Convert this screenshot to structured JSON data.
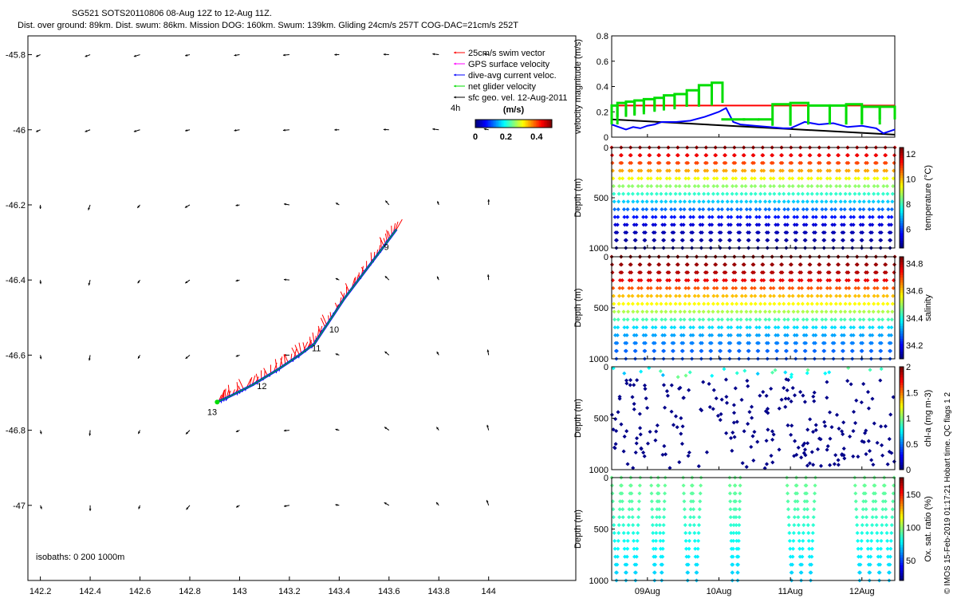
{
  "title_line1": "SG521 SOTS20110806 08-Aug 12Z to 12-Aug 11Z.",
  "title_line2": "Dist. over ground: 89km. Dist. swum: 86km. Mission DOG: 160km. Swum: 139km. Gliding 24cm/s 257T COG-DAC=21cm/s 252T",
  "side_label": "© IMOS 15-Feb-2019 01:17:21 Hobart time. QC flags 1  2",
  "chart_data": [
    {
      "type": "scatter",
      "name": "map",
      "xticks": [
        "142.2",
        "142.4",
        "142.6",
        "142.8",
        "143",
        "143.2",
        "143.4",
        "143.6",
        "143.8",
        "144"
      ],
      "yticks": [
        "-45.8",
        "-46",
        "-46.2",
        "-46.4",
        "-46.6",
        "-46.8",
        "-47"
      ],
      "xlim": [
        142.15,
        144.35
      ],
      "ylim": [
        -47.2,
        -45.75
      ],
      "legend": [
        {
          "label": "25cm/s swim vector",
          "color": "#ff0000"
        },
        {
          "label": "GPS surface velocity",
          "color": "#ff00ff"
        },
        {
          "label": "dive-avg current veloc.",
          "color": "#0000ff"
        },
        {
          "label": "net glider velocity",
          "color": "#00dd00"
        },
        {
          "label": "sfc geo. vel. 12-Aug-2011",
          "color": "#000000"
        }
      ],
      "ref_arrow_label": "4h",
      "colorbar": {
        "title": "(m/s)",
        "ticks": [
          "0",
          "0.2",
          "0.4"
        ],
        "range": [
          0,
          0.5
        ]
      },
      "isobaths_label": "isobaths: 0   200   1000m",
      "day_labels": [
        {
          "text": "9",
          "lon": 143.58,
          "lat": -46.32
        },
        {
          "text": "10",
          "lon": 143.36,
          "lat": -46.54
        },
        {
          "text": "11",
          "lon": 143.29,
          "lat": -46.59
        },
        {
          "text": "12",
          "lon": 143.07,
          "lat": -46.69
        },
        {
          "text": "13",
          "lon": 142.87,
          "lat": -46.76
        }
      ],
      "track": [
        [
          143.63,
          -46.265
        ],
        [
          143.58,
          -46.31
        ],
        [
          143.5,
          -46.38
        ],
        [
          143.42,
          -46.45
        ],
        [
          143.35,
          -46.52
        ],
        [
          143.3,
          -46.57
        ],
        [
          143.24,
          -46.6
        ],
        [
          143.15,
          -46.64
        ],
        [
          143.05,
          -46.68
        ],
        [
          142.96,
          -46.71
        ],
        [
          142.91,
          -46.725
        ]
      ]
    },
    {
      "type": "line",
      "name": "velocity",
      "ylabel": "velocity magnitude (m/s)",
      "yticks": [
        "0",
        "0.2",
        "0.4",
        "0.6",
        "0.8"
      ],
      "ylim": [
        0,
        0.8
      ],
      "xlim": [
        8.5,
        12.46
      ],
      "series": [
        {
          "color": "#ff0000",
          "x": [
            8.5,
            12.46
          ],
          "y": [
            0.25,
            0.25
          ]
        },
        {
          "color": "#000000",
          "x": [
            8.5,
            12.46
          ],
          "y": [
            0.14,
            0.02
          ]
        },
        {
          "color": "#0000ff",
          "x": [
            8.5,
            8.6,
            8.7,
            8.8,
            8.9,
            9.0,
            9.1,
            9.2,
            9.4,
            9.6,
            9.8,
            10.0,
            10.1,
            10.2,
            10.3,
            10.5,
            10.7,
            10.9,
            11.0,
            11.2,
            11.4,
            11.6,
            11.8,
            12.0,
            12.2,
            12.3,
            12.46
          ],
          "y": [
            0.1,
            0.08,
            0.06,
            0.08,
            0.07,
            0.09,
            0.1,
            0.12,
            0.12,
            0.13,
            0.16,
            0.2,
            0.23,
            0.12,
            0.1,
            0.09,
            0.08,
            0.07,
            0.07,
            0.12,
            0.1,
            0.11,
            0.08,
            0.09,
            0.07,
            0.03,
            0.06
          ]
        },
        {
          "color": "#00dd00",
          "steps": [
            [
              8.5,
              8.58,
              0.1,
              0.25
            ],
            [
              8.58,
              8.7,
              0.16,
              0.27
            ],
            [
              8.7,
              8.82,
              0.17,
              0.28
            ],
            [
              8.82,
              8.95,
              0.18,
              0.29
            ],
            [
              8.95,
              9.1,
              0.2,
              0.3
            ],
            [
              9.1,
              9.23,
              0.21,
              0.31
            ],
            [
              9.23,
              9.38,
              0.22,
              0.33
            ],
            [
              9.38,
              9.55,
              0.24,
              0.34
            ],
            [
              9.55,
              9.72,
              0.24,
              0.37
            ],
            [
              9.72,
              9.9,
              0.25,
              0.41
            ],
            [
              9.9,
              10.05,
              0.27,
              0.43
            ],
            [
              10.05,
              10.35,
              0.15,
              0.14
            ],
            [
              10.35,
              10.55,
              0.13,
              0.14
            ],
            [
              10.55,
              10.75,
              0.14,
              0.14
            ],
            [
              10.75,
              11.0,
              0.09,
              0.26
            ],
            [
              11.0,
              11.25,
              0.1,
              0.27
            ],
            [
              11.25,
              11.55,
              0.1,
              0.25
            ],
            [
              11.55,
              11.78,
              0.1,
              0.25
            ],
            [
              11.78,
              12.0,
              0.1,
              0.26
            ],
            [
              12.0,
              12.25,
              0.1,
              0.24
            ],
            [
              12.25,
              12.46,
              0.14,
              0.24
            ]
          ]
        }
      ]
    },
    {
      "type": "scatter",
      "name": "temperature",
      "ylabel": "Depth (m)",
      "cbar_label": "temperature (°C)",
      "cbar_ticks": [
        "6",
        "8",
        "10",
        "12"
      ],
      "cbar_range": [
        4.5,
        12.5
      ],
      "yticks": [
        "0",
        "500",
        "1000"
      ],
      "ylim": [
        0,
        1000
      ],
      "profile": [
        [
          0,
          12
        ],
        [
          100,
          11.5
        ],
        [
          200,
          10.5
        ],
        [
          300,
          9.5
        ],
        [
          400,
          8.5
        ],
        [
          500,
          7.5
        ],
        [
          600,
          6.5
        ],
        [
          700,
          5.6
        ],
        [
          800,
          5
        ],
        [
          900,
          4.8
        ],
        [
          1000,
          4.6
        ]
      ],
      "dive_count": 30,
      "max_depth": 1000
    },
    {
      "type": "scatter",
      "name": "salinity",
      "ylabel": "Depth (m)",
      "cbar_label": "salinity",
      "cbar_ticks": [
        "34.2",
        "34.4",
        "34.6",
        "34.8"
      ],
      "cbar_range": [
        34.1,
        34.85
      ],
      "yticks": [
        "0",
        "500",
        "1000"
      ],
      "ylim": [
        0,
        1000
      ],
      "profile": [
        [
          0,
          34.85
        ],
        [
          200,
          34.8
        ],
        [
          300,
          34.7
        ],
        [
          400,
          34.6
        ],
        [
          500,
          34.55
        ],
        [
          600,
          34.45
        ],
        [
          700,
          34.35
        ],
        [
          800,
          34.3
        ],
        [
          1000,
          34.25
        ]
      ],
      "dive_count": 30,
      "max_depth": 1000
    },
    {
      "type": "scatter",
      "name": "chla",
      "ylabel": "Depth (m)",
      "cbar_label": "chl-a (mg m-3)",
      "cbar_ticks": [
        "0",
        "0.5",
        "1",
        "1.5",
        "2"
      ],
      "cbar_range": [
        0,
        2
      ],
      "yticks": [
        "0",
        "500",
        "1000"
      ],
      "ylim": [
        0,
        1000
      ],
      "dive_count": 30,
      "max_depth": 1000
    },
    {
      "type": "scatter",
      "name": "oxygen",
      "ylabel": "Depth (m)",
      "cbar_label": "Ox. sat. ratio (%)",
      "cbar_ticks": [
        "50",
        "100",
        "150"
      ],
      "cbar_range": [
        20,
        175
      ],
      "yticks": [
        "0",
        "500",
        "1000"
      ],
      "ylim": [
        0,
        1000
      ],
      "profile": [
        [
          0,
          95
        ],
        [
          300,
          90
        ],
        [
          600,
          80
        ],
        [
          1000,
          70
        ]
      ],
      "dive_ranges": [
        [
          8.5,
          8.9
        ],
        [
          9.05,
          9.25
        ],
        [
          9.5,
          9.75
        ],
        [
          10.15,
          10.3
        ],
        [
          10.95,
          11.35
        ],
        [
          11.9,
          12.45
        ]
      ],
      "max_depth": 1000
    }
  ],
  "time_axis": {
    "ticks": [
      "09Aug",
      "10Aug",
      "11Aug",
      "12Aug"
    ],
    "values": [
      9,
      10,
      11,
      12
    ],
    "xlim": [
      8.5,
      12.46
    ]
  }
}
